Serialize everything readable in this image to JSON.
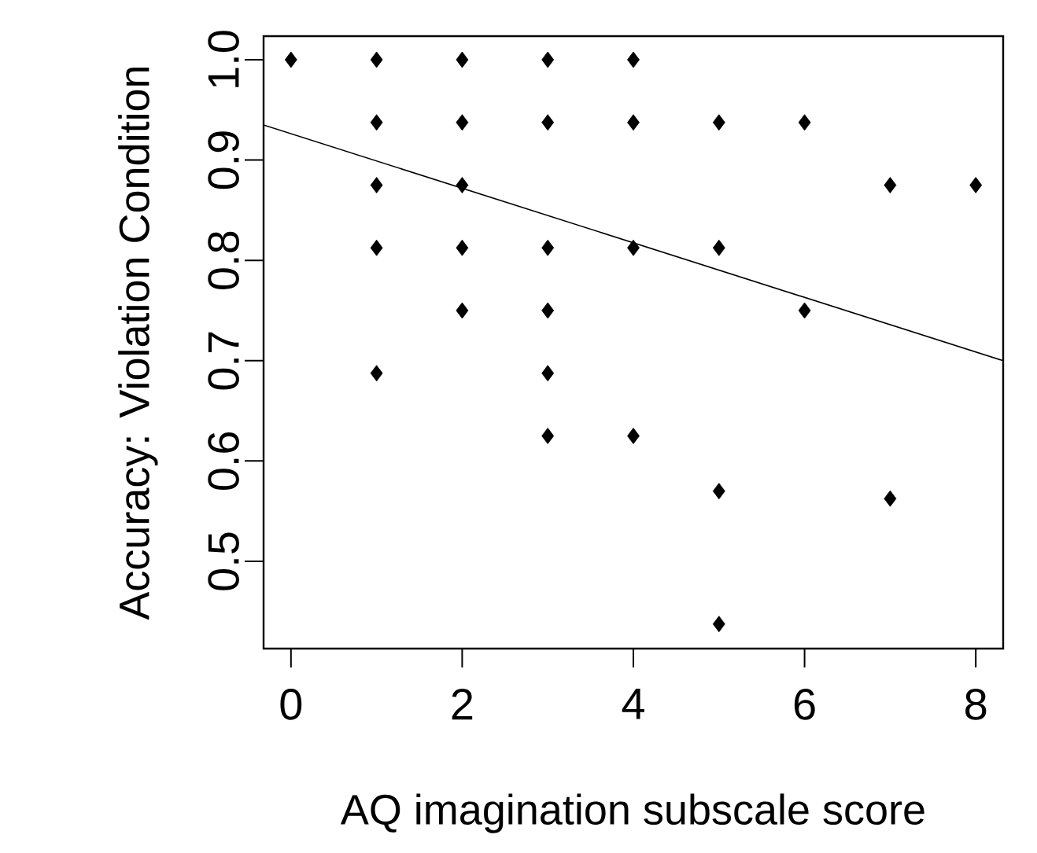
{
  "chart_data": {
    "type": "scatter",
    "xlabel": "AQ imagination subscale score",
    "ylabel": "Accuracy: Violation Condition",
    "xlim": [
      -0.32,
      8.32
    ],
    "ylim": [
      0.413,
      1.0235
    ],
    "xticks": [
      0,
      2,
      4,
      6,
      8
    ],
    "yticks": [
      {
        "value": 0.5,
        "label": "0.5"
      },
      {
        "value": 0.6,
        "label": "0.6"
      },
      {
        "value": 0.7,
        "label": "0.7"
      },
      {
        "value": 0.8,
        "label": "0.8"
      },
      {
        "value": 0.9,
        "label": "0.9"
      },
      {
        "value": 1.0,
        "label": "1.0"
      }
    ],
    "series": [
      {
        "marker": "diamond",
        "color": "#000000",
        "x": [
          0,
          1,
          1,
          1,
          1,
          1,
          2,
          2,
          2,
          2,
          2,
          3,
          3,
          3,
          3,
          3,
          3,
          4,
          4,
          4,
          4,
          5,
          5,
          5,
          5,
          6,
          6,
          7,
          7,
          8
        ],
        "values": [
          1.0,
          1.0,
          0.9375,
          0.875,
          0.8125,
          0.6875,
          1.0,
          0.9375,
          0.875,
          0.8125,
          0.75,
          1.0,
          0.9375,
          0.8125,
          0.75,
          0.6875,
          0.625,
          1.0,
          0.9375,
          0.8125,
          0.625,
          0.9375,
          0.8125,
          0.57,
          0.4375,
          0.9375,
          0.75,
          0.875,
          0.5625,
          0.875
        ]
      },
      {
        "type": "line",
        "marker": "none",
        "color": "#000000",
        "x": [
          -0.32,
          8.32
        ],
        "values": [
          0.935,
          0.7
        ]
      }
    ]
  }
}
